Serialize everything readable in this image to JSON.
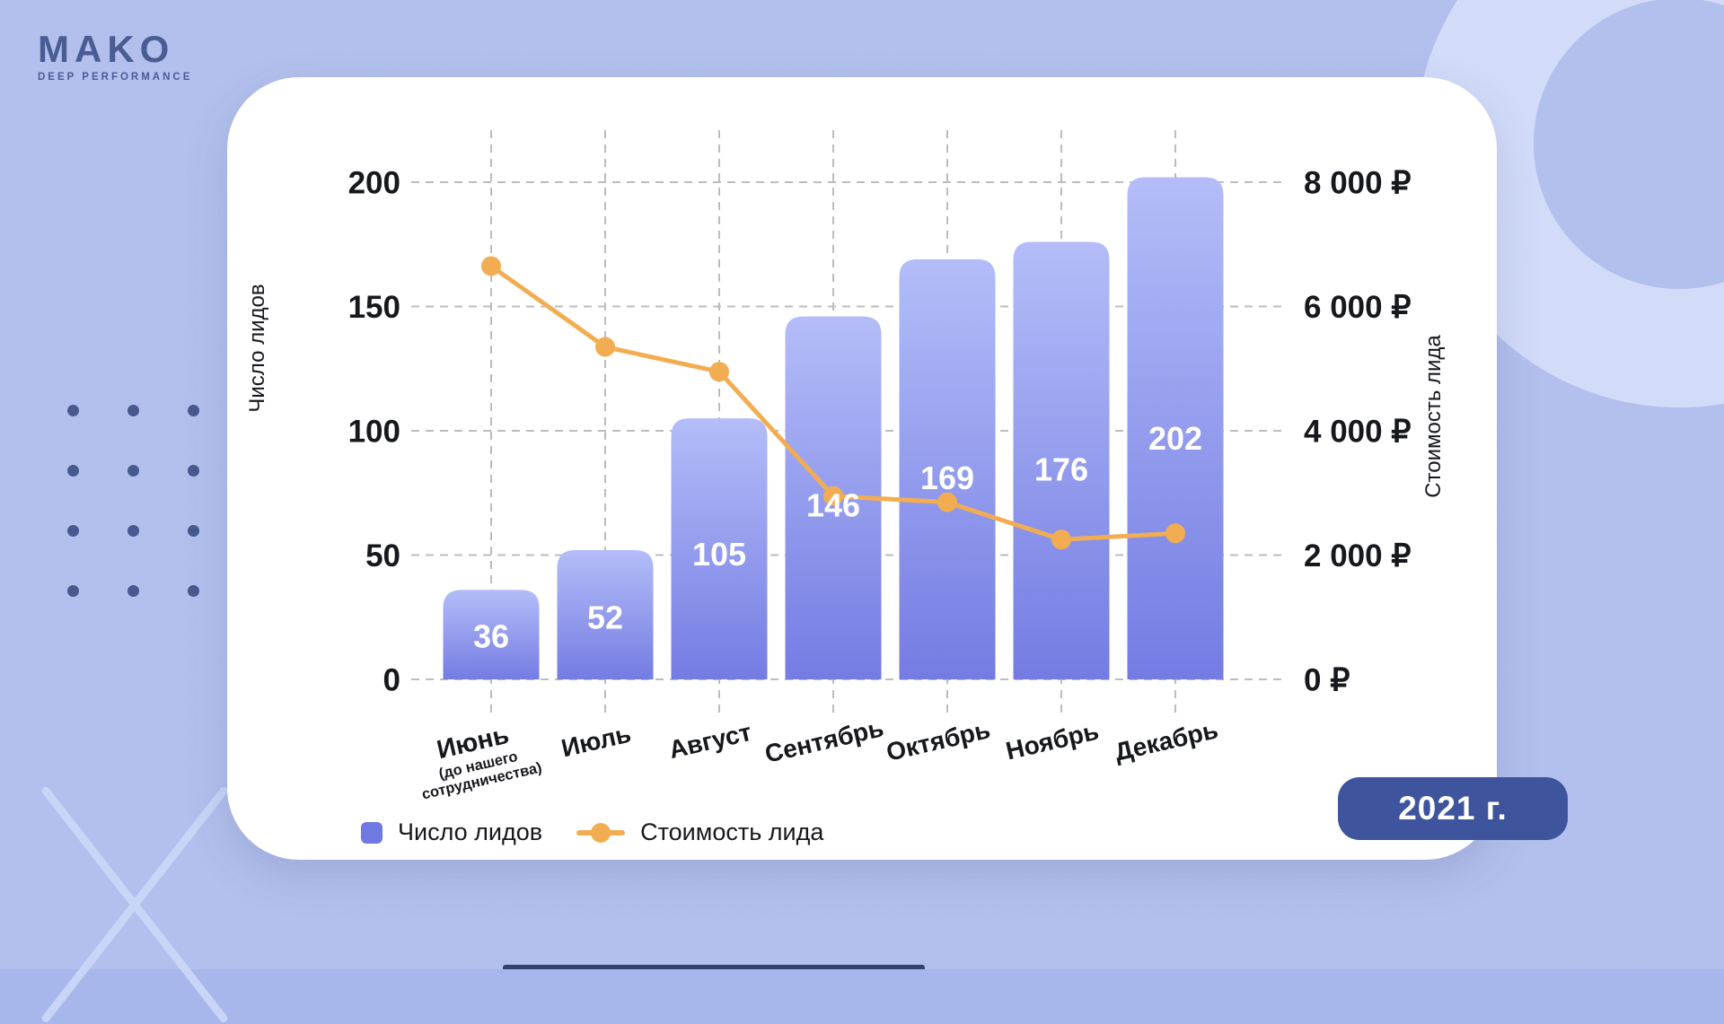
{
  "page": {
    "background_color": "#a7b6eb"
  },
  "logo": {
    "title": "MAKO",
    "subtitle": "DEEP PERFORMANCE",
    "color": "#4a5c94"
  },
  "year_badge": {
    "label": "2021 г.",
    "bg_color": "#3e549d"
  },
  "legend": {
    "items": [
      {
        "label": "Число лидов",
        "marker": "square",
        "color": "#6e79e1"
      },
      {
        "label": "Стоимость лида",
        "marker": "line-dot",
        "color": "#f2ad52"
      }
    ]
  },
  "chart_data": {
    "type": "combo-bar-line",
    "categories": [
      "Июнь",
      "Июль",
      "Август",
      "Сентябрь",
      "Октябрь",
      "Ноябрь",
      "Декабрь"
    ],
    "category_notes": {
      "0": "(до нашего сотрудничества)"
    },
    "series": [
      {
        "name": "Число лидов",
        "type": "bar",
        "axis": "left",
        "values": [
          36,
          52,
          105,
          146,
          169,
          176,
          202
        ],
        "color_top": "#b4bdf8",
        "color_bottom": "#747ce3",
        "value_label_color": "#ffffff"
      },
      {
        "name": "Стоимость лида",
        "type": "line",
        "axis": "right",
        "values": [
          6650,
          5350,
          4950,
          2950,
          2850,
          2250,
          2350
        ],
        "values_note": "₽, estimated from gridlines",
        "color": "#f2ad52"
      }
    ],
    "left_axis": {
      "title": "Число лидов",
      "tick_labels": [
        "0",
        "50",
        "100",
        "150",
        "200"
      ],
      "tick_values": [
        0,
        50,
        100,
        150,
        200
      ],
      "range": [
        0,
        200
      ]
    },
    "right_axis": {
      "title": "Стоимость лида",
      "tick_labels": [
        "0 ₽",
        "2 000 ₽",
        "4 000 ₽",
        "6 000 ₽",
        "8 000 ₽"
      ],
      "tick_values": [
        0,
        2000,
        4000,
        6000,
        8000
      ],
      "range": [
        0,
        8000
      ]
    },
    "grid": {
      "style": "dashed",
      "color": "#bcbcbc"
    }
  }
}
